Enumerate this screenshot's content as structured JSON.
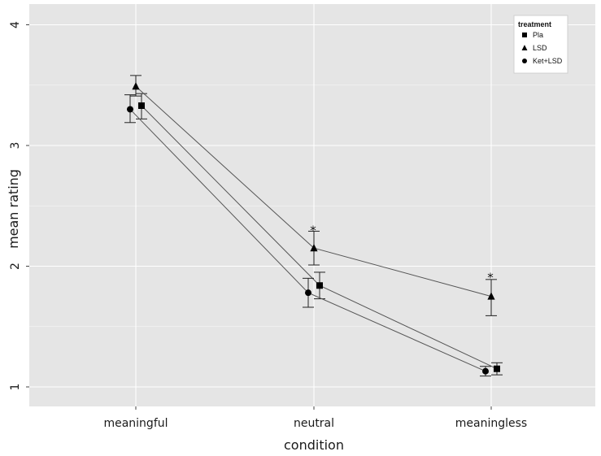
{
  "chart_data": {
    "type": "line",
    "xlabel": "condition",
    "ylabel": "mean rating",
    "categories": [
      "meaningful",
      "neutral",
      "meaningless"
    ],
    "ylim": [
      0.8,
      4.15
    ],
    "yticks": [
      1,
      2,
      3,
      4
    ],
    "grid": true,
    "legend": {
      "title": "treatment",
      "placement": "top-right"
    },
    "series": [
      {
        "name": "Pla",
        "marker": "square",
        "values": [
          3.33,
          1.84,
          1.15
        ],
        "err_low": [
          3.22,
          1.73,
          1.1
        ],
        "err_high": [
          3.43,
          1.95,
          1.2
        ]
      },
      {
        "name": "LSD",
        "marker": "triangle",
        "values": [
          3.49,
          2.15,
          1.75
        ],
        "err_low": [
          3.41,
          2.01,
          1.59
        ],
        "err_high": [
          3.58,
          2.29,
          1.89
        ]
      },
      {
        "name": "Ket+LSD",
        "marker": "circle",
        "values": [
          3.3,
          1.78,
          1.13
        ],
        "err_low": [
          3.19,
          1.66,
          1.09
        ],
        "err_high": [
          3.42,
          1.9,
          1.17
        ]
      }
    ],
    "annotations": [
      {
        "text": "*",
        "category": "neutral",
        "y": 2.33
      },
      {
        "text": "*",
        "category": "meaningless",
        "y": 1.94
      }
    ]
  },
  "colors": {
    "panel": "#e5e5e5",
    "grid": "#ffffff",
    "line": "#555555",
    "marker": "#000000"
  }
}
